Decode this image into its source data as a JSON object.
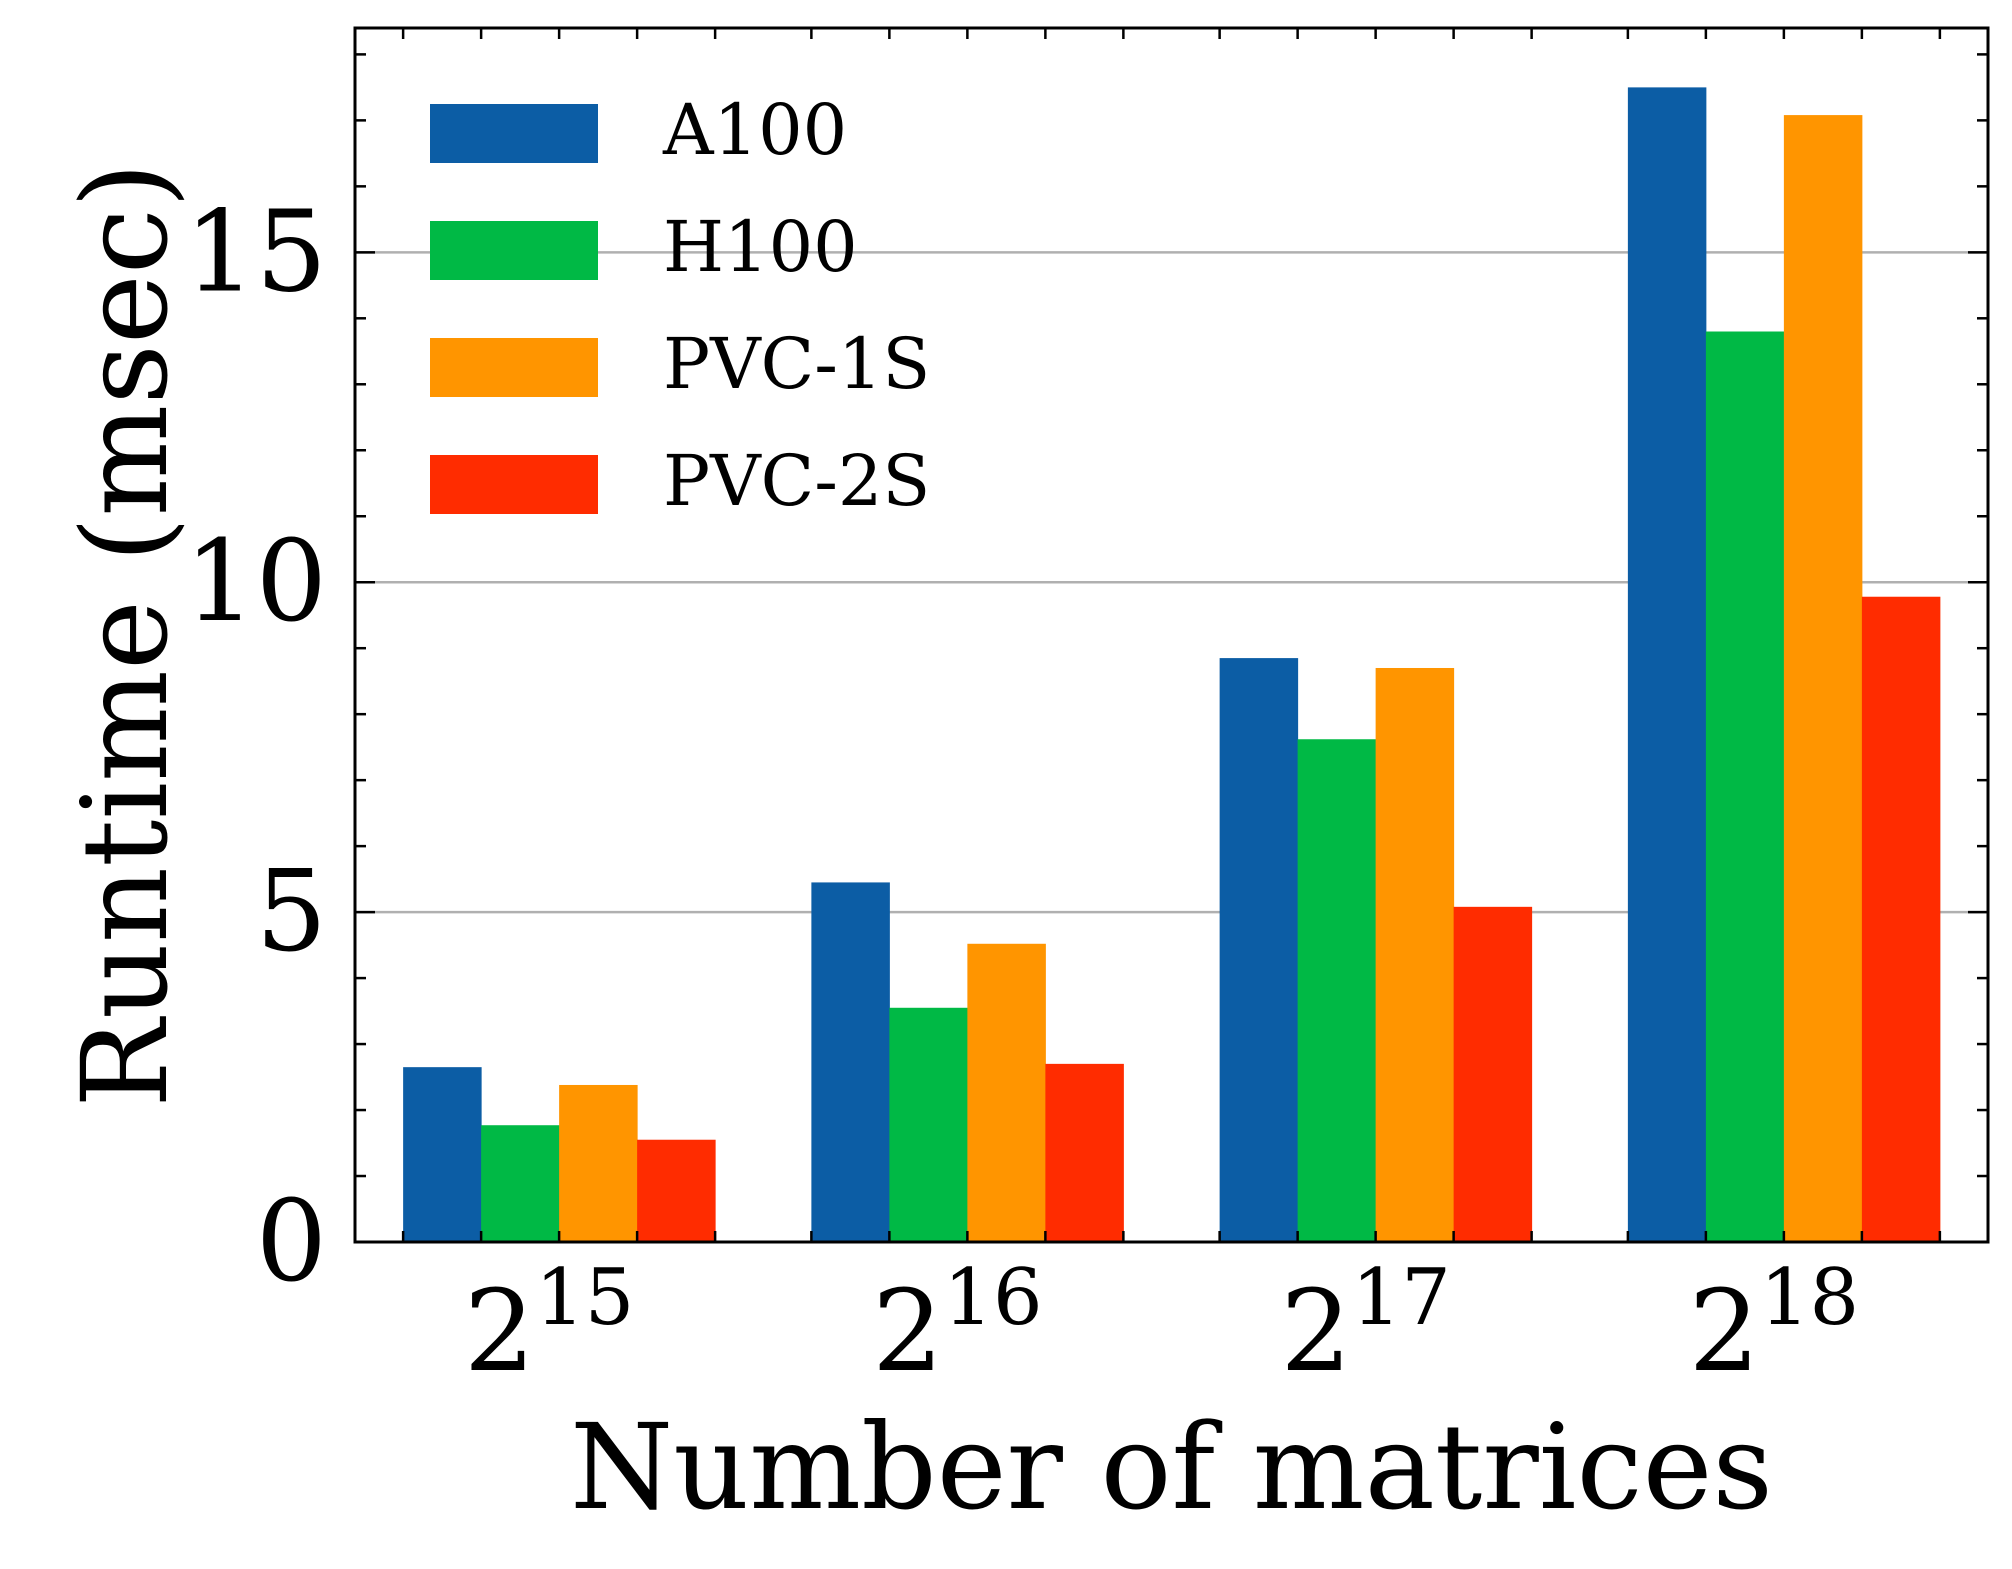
{
  "chart_data": {
    "type": "bar",
    "title": "",
    "xlabel": "Number of matrices",
    "ylabel": "Runtime (msec)",
    "ylim": [
      0,
      18.4
    ],
    "yticks": [
      0,
      5,
      10,
      15
    ],
    "grid": "horizontal at major y ticks",
    "legend_position": "top-left",
    "categories": [
      {
        "base": "2",
        "exp": "15"
      },
      {
        "base": "2",
        "exp": "16"
      },
      {
        "base": "2",
        "exp": "17"
      },
      {
        "base": "2",
        "exp": "18"
      }
    ],
    "series": [
      {
        "name": "A100",
        "color": "#0c5da5",
        "values": [
          2.65,
          5.45,
          8.85,
          17.5
        ]
      },
      {
        "name": "H100",
        "color": "#00b945",
        "values": [
          1.77,
          3.55,
          7.62,
          13.8
        ]
      },
      {
        "name": "PVC-1S",
        "color": "#ff9500",
        "values": [
          2.38,
          4.52,
          8.7,
          17.08
        ]
      },
      {
        "name": "PVC-2S",
        "color": "#ff2c00",
        "values": [
          1.55,
          2.7,
          5.08,
          9.78
        ]
      }
    ]
  }
}
